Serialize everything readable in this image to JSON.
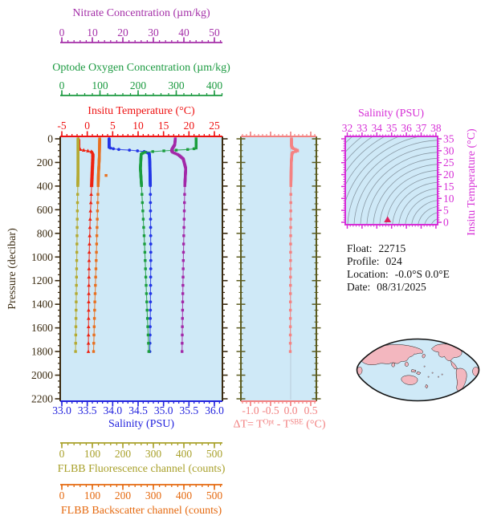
{
  "info": {
    "lines": [
      {
        "label": "Float:",
        "value": "22715"
      },
      {
        "label": "Profile:",
        "value": "024"
      },
      {
        "label": "Location:",
        "value": "-0.0°S  0.0°E"
      },
      {
        "label": "Date:",
        "value": "08/31/2025"
      }
    ]
  },
  "chart_data": [
    {
      "id": "profile-plot",
      "type": "line",
      "background_color": "#cfe9f7",
      "frame_color": "#3a2a10",
      "y_axis": {
        "label": "Pressure (decibar)",
        "range": [
          0,
          2200
        ],
        "tick_labels": [
          "0",
          "200",
          "400",
          "600",
          "800",
          "1000",
          "1200",
          "1400",
          "1600",
          "1800",
          "2000",
          "2200"
        ],
        "minor_step": 50,
        "color": "#3a2a10"
      },
      "x_axes": [
        {
          "id": "nitrate",
          "label": "Nitrate Concentration (µm/kg)",
          "range": [
            0,
            50
          ],
          "tick_labels": [
            "0",
            "10",
            "20",
            "30",
            "40",
            "50"
          ],
          "minor_step": 2,
          "color": "#a42fa8"
        },
        {
          "id": "oxygen",
          "label": "Optode Oxygen Concentration (µm/kg)",
          "range": [
            0,
            400
          ],
          "tick_labels": [
            "0",
            "100",
            "200",
            "300",
            "400"
          ],
          "minor_step": 20,
          "color": "#1b9a40"
        },
        {
          "id": "temperature",
          "label": "Insitu Temperature (°C)",
          "range": [
            -5,
            25
          ],
          "tick_labels": [
            "-5",
            "0",
            "5",
            "10",
            "15",
            "20",
            "25"
          ],
          "minor_step": 1,
          "color": "#ee1111"
        },
        {
          "id": "salinity",
          "label": "Salinity (PSU)",
          "range": [
            33,
            36
          ],
          "tick_labels": [
            "33.0",
            "33.5",
            "34.0",
            "34.5",
            "35.0",
            "35.5",
            "36.0"
          ],
          "minor_step": 0.1,
          "color": "#2222dd"
        },
        {
          "id": "fluorescence",
          "label": "FLBB Fluorescence channel (counts)",
          "range": [
            0,
            500
          ],
          "tick_labels": [
            "0",
            "100",
            "200",
            "300",
            "400",
            "500"
          ],
          "minor_step": 20,
          "color": "#a8a02a"
        },
        {
          "id": "backscatter",
          "label": "FLBB Backscatter channel (counts)",
          "range": [
            0,
            500
          ],
          "tick_labels": [
            "0",
            "100",
            "200",
            "300",
            "400",
            "500"
          ],
          "minor_step": 20,
          "color": "#e5690f"
        }
      ],
      "max_pressure_dbar": 1800,
      "series": [
        {
          "name": "Insitu Temperature",
          "axis": "temperature",
          "color": "#ee2211",
          "marker": "triangle",
          "profile": [
            [
              0,
              -1.7
            ],
            [
              80,
              -1.7
            ],
            [
              92,
              -1.3
            ],
            [
              100,
              -0.1
            ],
            [
              108,
              0.8
            ],
            [
              118,
              1.1
            ],
            [
              150,
              1.1
            ],
            [
              300,
              0.95
            ],
            [
              400,
              0.85
            ],
            [
              700,
              0.55
            ],
            [
              1000,
              0.37
            ],
            [
              1400,
              0.28
            ],
            [
              1800,
              0.22
            ]
          ]
        },
        {
          "name": "Salinity",
          "axis": "salinity",
          "color": "#2336e6",
          "marker": "circle",
          "profile": [
            [
              0,
              33.93
            ],
            [
              75,
              33.93
            ],
            [
              88,
              34.05
            ],
            [
              98,
              34.4
            ],
            [
              108,
              34.62
            ],
            [
              125,
              34.72
            ],
            [
              200,
              34.73
            ],
            [
              400,
              34.74
            ],
            [
              1000,
              34.75
            ],
            [
              1500,
              34.74
            ],
            [
              1800,
              34.73
            ]
          ]
        },
        {
          "name": "Optode Oxygen",
          "axis": "oxygen",
          "color": "#1b9e3e",
          "marker": "square",
          "profile": [
            [
              0,
              352
            ],
            [
              82,
              352
            ],
            [
              90,
              330
            ],
            [
              98,
              290
            ],
            [
              106,
              245
            ],
            [
              115,
              215
            ],
            [
              130,
              208
            ],
            [
              250,
              206
            ],
            [
              400,
              209
            ],
            [
              900,
              217
            ],
            [
              1400,
              223
            ],
            [
              1800,
              228
            ]
          ]
        },
        {
          "name": "Nitrate",
          "axis": "nitrate",
          "color": "#a228a8",
          "marker": "square",
          "profile": [
            [
              0,
              37.2
            ],
            [
              50,
              37.0
            ],
            [
              80,
              36.3
            ],
            [
              100,
              35.9
            ],
            [
              115,
              36.4
            ],
            [
              135,
              38.2
            ],
            [
              170,
              39.8
            ],
            [
              250,
              40.6
            ],
            [
              400,
              40.3
            ],
            [
              900,
              39.9
            ],
            [
              1400,
              39.6
            ],
            [
              1800,
              39.4
            ]
          ]
        },
        {
          "name": "FLBB Fluorescence",
          "axis": "fluorescence",
          "color": "#b4aa32",
          "marker": "square",
          "profile": [
            [
              0,
              53
            ],
            [
              300,
              53
            ],
            [
              600,
              51
            ],
            [
              1000,
              49
            ],
            [
              1400,
              47
            ],
            [
              1800,
              45
            ]
          ]
        },
        {
          "name": "FLBB Backscatter",
          "axis": "backscatter",
          "color": "#e87020",
          "marker": "square",
          "profile": [
            [
              0,
              124
            ],
            [
              150,
              123
            ],
            [
              300,
              120
            ],
            [
              600,
              117
            ],
            [
              1000,
              113
            ],
            [
              1400,
              108
            ],
            [
              1800,
              104
            ]
          ],
          "outliers": [
            [
              310,
              145
            ]
          ]
        }
      ]
    },
    {
      "id": "delta-t-plot",
      "type": "line",
      "background_color": "#cfe9f7",
      "x_axis": {
        "label_parts": {
          "prefix": "ΔT= T",
          "sup1": "Opt",
          "mid": " - T",
          "sup2": "SBE",
          "suffix": " (°C)"
        },
        "range": [
          -1.25,
          0.65
        ],
        "tick_labels": [
          "-1.0",
          "-0.5",
          "0.0",
          "0.5"
        ],
        "minor_step": 0.1,
        "color": "#f28080"
      },
      "y_axis": {
        "shared_with": "Pressure (decibar)",
        "frame_color": "#5c5c20"
      },
      "series": [
        {
          "name": "ΔT",
          "color": "#f58282",
          "marker": "square",
          "profile": [
            [
              0,
              0.02
            ],
            [
              60,
              0.02
            ],
            [
              80,
              0.05
            ],
            [
              90,
              0.12
            ],
            [
              100,
              0.19
            ],
            [
              107,
              0.13
            ],
            [
              115,
              0.05
            ],
            [
              130,
              0.03
            ],
            [
              200,
              0.015
            ],
            [
              400,
              0.005
            ],
            [
              800,
              0
            ],
            [
              1200,
              -0.005
            ],
            [
              1800,
              -0.01
            ]
          ]
        }
      ]
    },
    {
      "id": "ts-diagram",
      "type": "scatter",
      "background_color": "#cfe9f7",
      "frame_color": "#d62fd6",
      "x_axis": {
        "label": "Salinity (PSU)",
        "range": [
          32,
          38
        ],
        "tick_labels": [
          "32",
          "33",
          "34",
          "35",
          "36",
          "37",
          "38"
        ],
        "minor_step": 0.2,
        "color": "#d62fd6"
      },
      "y_axis": {
        "label": "Insitu Temperature (°C)",
        "range": [
          0,
          35
        ],
        "tick_labels": [
          "0",
          "5",
          "10",
          "15",
          "20",
          "25",
          "30",
          "35"
        ],
        "minor_step": 1,
        "color": "#d62fd6"
      },
      "isopycnal_contours": true,
      "contour_color": "#8a9aa6",
      "marker": {
        "shape": "triangle",
        "color": "#e02060",
        "salinity": 34.73,
        "temperature": 0.3
      }
    }
  ],
  "map": {
    "name": "world-map-pacific-centered",
    "projection": "robinson-like",
    "ocean_color": "#cfe9f7",
    "land_color": "#f3b7bf",
    "outline_color": "#111111"
  }
}
